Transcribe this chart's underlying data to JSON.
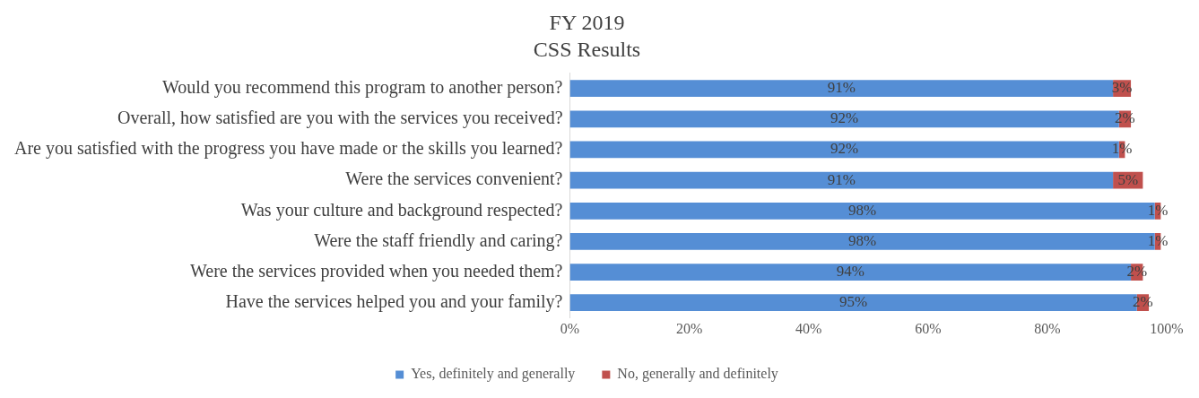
{
  "chart_data": {
    "type": "bar",
    "title": "FY 2019",
    "subtitle": "CSS Results",
    "orientation": "horizontal",
    "stacked": true,
    "categories": [
      "Would you recommend this program to another person?",
      "Overall, how satisfied are you with the services you received?",
      "Are you satisfied with the progress you have made or the skills you learned?",
      "Were the services convenient?",
      "Was your culture and background respected?",
      "Were the staff friendly and caring?",
      "Were the services provided when you needed them?",
      "Have the services helped you and your family?"
    ],
    "series": [
      {
        "name": "Yes, definitely and generally",
        "color": "#558ed5",
        "values": [
          91,
          92,
          92,
          91,
          98,
          98,
          94,
          95
        ],
        "value_labels": [
          "91%",
          "92%",
          "92%",
          "91%",
          "98%",
          "98%",
          "94%",
          "95%"
        ]
      },
      {
        "name": "No, generally and definitely",
        "color": "#c0504d",
        "values": [
          3,
          2,
          1,
          5,
          1,
          1,
          2,
          2
        ],
        "value_labels": [
          "3%",
          "2%",
          "1%",
          "5%",
          "1%",
          "1%",
          "2%",
          "2%"
        ]
      }
    ],
    "xlim": [
      0,
      100
    ],
    "xticks": [
      {
        "value": 0,
        "label": "0%"
      },
      {
        "value": 20,
        "label": "20%"
      },
      {
        "value": 40,
        "label": "40%"
      },
      {
        "value": 60,
        "label": "60%"
      },
      {
        "value": 80,
        "label": "80%"
      },
      {
        "value": 100,
        "label": "100%"
      }
    ],
    "grid": false,
    "legend": "bottom"
  }
}
